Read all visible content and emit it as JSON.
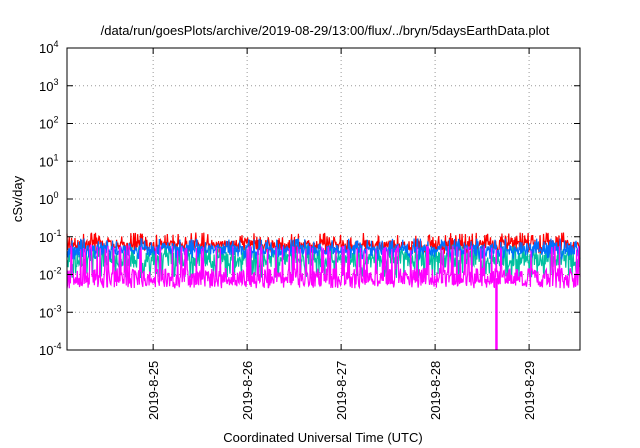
{
  "chart_data": {
    "type": "line",
    "title": "/data/run/goesPlots/archive/2019-08-29/13:00/flux/../bryn/5daysEarthData.plot",
    "xlabel": "Coordinated Universal Time (UTC)",
    "ylabel": "cSv/day",
    "yscale": "log",
    "ylim": [
      0.0001,
      10000
    ],
    "xlim": [
      "2019-08-24T02:00",
      "2019-08-29T13:00"
    ],
    "y_ticks": [
      {
        "base": "10",
        "exp": "-4",
        "value": 0.0001
      },
      {
        "base": "10",
        "exp": "-3",
        "value": 0.001
      },
      {
        "base": "10",
        "exp": "-2",
        "value": 0.01
      },
      {
        "base": "10",
        "exp": "-1",
        "value": 0.1
      },
      {
        "base": "10",
        "exp": "0",
        "value": 1
      },
      {
        "base": "10",
        "exp": "1",
        "value": 10
      },
      {
        "base": "10",
        "exp": "2",
        "value": 100
      },
      {
        "base": "10",
        "exp": "3",
        "value": 1000
      },
      {
        "base": "10",
        "exp": "4",
        "value": 10000
      }
    ],
    "x_ticks": [
      {
        "label": "2019-8-25",
        "value": "2019-08-25T00:00"
      },
      {
        "label": "2019-8-26",
        "value": "2019-08-26T00:00"
      },
      {
        "label": "2019-8-27",
        "value": "2019-08-27T00:00"
      },
      {
        "label": "2019-8-28",
        "value": "2019-08-28T00:00"
      },
      {
        "label": "2019-8-29",
        "value": "2019-08-29T00:00"
      }
    ],
    "grid": true,
    "grid_style": "dotted",
    "series": [
      {
        "color": "#ff0000",
        "typical": 0.06,
        "low": 0.035,
        "high": 0.13
      },
      {
        "color": "#00c0a0",
        "typical": 0.025,
        "low": 0.008,
        "high": 0.06
      },
      {
        "color": "#0070ff",
        "typical": 0.045,
        "low": 0.025,
        "high": 0.09
      },
      {
        "color": "#ff00ff",
        "typical": 0.008,
        "low": 0.005,
        "high": 0.06,
        "dropout": {
          "time": "2019-08-28T15:40",
          "min": 0.0001
        }
      }
    ]
  }
}
